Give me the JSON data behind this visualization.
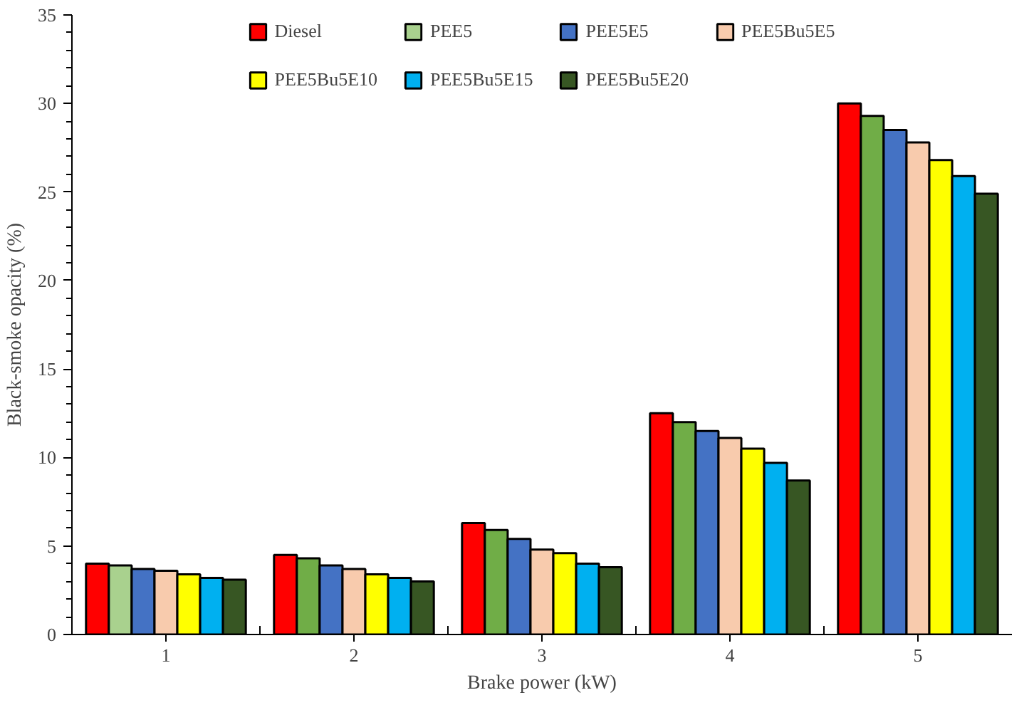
{
  "chart_data": {
    "type": "bar",
    "xlabel": "Brake power (kW)",
    "ylabel": "Black-smoke opacity (%)",
    "categories": [
      "1",
      "2",
      "3",
      "4",
      "5"
    ],
    "series": [
      {
        "name": "Diesel",
        "color": "#ff0000",
        "values": [
          4.0,
          4.5,
          6.3,
          12.5,
          30.0
        ]
      },
      {
        "name": "PEE5",
        "color": "#70ad47",
        "colors": [
          "#a9d18e",
          "#70ad47",
          "#70ad47",
          "#70ad47",
          "#70ad47"
        ],
        "values": [
          3.9,
          4.3,
          5.9,
          12.0,
          29.3
        ]
      },
      {
        "name": "PEE5E5",
        "color": "#4472c4",
        "values": [
          3.7,
          3.9,
          5.4,
          11.5,
          28.5
        ]
      },
      {
        "name": "PEE5Bu5E5",
        "color": "#f8cbad",
        "values": [
          3.6,
          3.7,
          4.8,
          11.1,
          27.8
        ]
      },
      {
        "name": "PEE5Bu5E10",
        "color": "#ffff00",
        "values": [
          3.4,
          3.4,
          4.6,
          10.5,
          26.8
        ]
      },
      {
        "name": "PEE5Bu5E15",
        "color": "#00b0f0",
        "values": [
          3.2,
          3.2,
          4.0,
          9.7,
          25.9
        ]
      },
      {
        "name": "PEE5Bu5E20",
        "color": "#375623",
        "values": [
          3.1,
          3.0,
          3.8,
          8.7,
          24.9
        ]
      }
    ],
    "ylim": [
      0,
      35
    ],
    "yticks": [
      0,
      5,
      10,
      15,
      20,
      25,
      30,
      35
    ],
    "grid": false,
    "legend": "top"
  }
}
